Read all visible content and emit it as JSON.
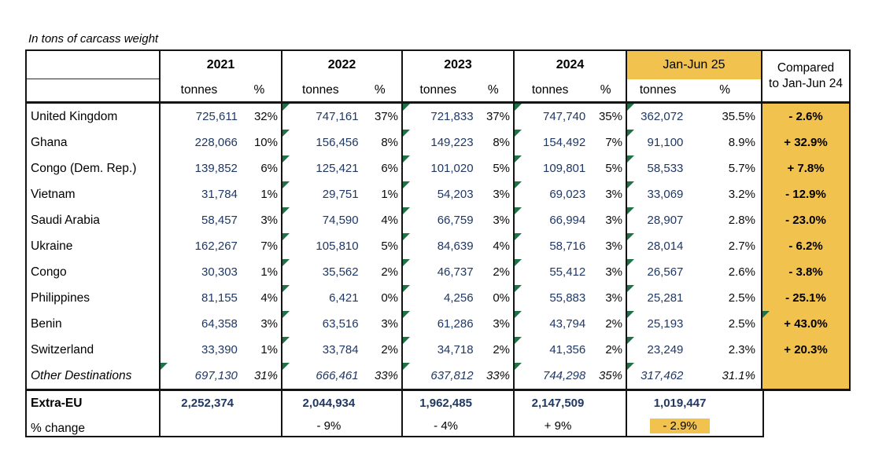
{
  "title": "In tons of carcass weight",
  "colors": {
    "highlight": "#F2C24E",
    "value_navy": "#1F3864",
    "flag_green": "#1E7245"
  },
  "table": {
    "col_headers": [
      {
        "label": "2021",
        "tonnes_label": "tonnes",
        "pct_label": "%",
        "highlight": false
      },
      {
        "label": "2022",
        "tonnes_label": "tonnes",
        "pct_label": "%",
        "highlight": false
      },
      {
        "label": "2023",
        "tonnes_label": "tonnes",
        "pct_label": "%",
        "highlight": false
      },
      {
        "label": "2024",
        "tonnes_label": "tonnes",
        "pct_label": "%",
        "highlight": false
      },
      {
        "label": "Jan-Jun 25",
        "tonnes_label": "tonnes",
        "pct_label": "%",
        "highlight": true
      }
    ],
    "compared_header": {
      "line1": "Compared",
      "line2": "to Jan-Jun 24"
    },
    "rows": [
      {
        "name": "United Kingdom",
        "italic": false,
        "cells": [
          {
            "tonnes": "725,611",
            "pct": "32%",
            "flag": false
          },
          {
            "tonnes": "747,161",
            "pct": "37%",
            "flag": true
          },
          {
            "tonnes": "721,833",
            "pct": "37%",
            "flag": true
          },
          {
            "tonnes": "747,740",
            "pct": "35%",
            "flag": true
          },
          {
            "tonnes": "362,072",
            "pct": "35.5%",
            "flag": true
          }
        ],
        "compared": "- 2.6%",
        "compared_flag": false
      },
      {
        "name": "Ghana",
        "italic": false,
        "cells": [
          {
            "tonnes": "228,066",
            "pct": "10%",
            "flag": false
          },
          {
            "tonnes": "156,456",
            "pct": "8%",
            "flag": true
          },
          {
            "tonnes": "149,223",
            "pct": "8%",
            "flag": true
          },
          {
            "tonnes": "154,492",
            "pct": "7%",
            "flag": true
          },
          {
            "tonnes": "91,100",
            "pct": "8.9%",
            "flag": true
          }
        ],
        "compared": "+ 32.9%",
        "compared_flag": false
      },
      {
        "name": "Congo (Dem. Rep.)",
        "italic": false,
        "cells": [
          {
            "tonnes": "139,852",
            "pct": "6%",
            "flag": false
          },
          {
            "tonnes": "125,421",
            "pct": "6%",
            "flag": true
          },
          {
            "tonnes": "101,020",
            "pct": "5%",
            "flag": true
          },
          {
            "tonnes": "109,801",
            "pct": "5%",
            "flag": true
          },
          {
            "tonnes": "58,533",
            "pct": "5.7%",
            "flag": true
          }
        ],
        "compared": "+ 7.8%",
        "compared_flag": false
      },
      {
        "name": "Vietnam",
        "italic": false,
        "cells": [
          {
            "tonnes": "31,784",
            "pct": "1%",
            "flag": false
          },
          {
            "tonnes": "29,751",
            "pct": "1%",
            "flag": true
          },
          {
            "tonnes": "54,203",
            "pct": "3%",
            "flag": true
          },
          {
            "tonnes": "69,023",
            "pct": "3%",
            "flag": true
          },
          {
            "tonnes": "33,069",
            "pct": "3.2%",
            "flag": true
          }
        ],
        "compared": "- 12.9%",
        "compared_flag": false
      },
      {
        "name": "Saudi Arabia",
        "italic": false,
        "cells": [
          {
            "tonnes": "58,457",
            "pct": "3%",
            "flag": false
          },
          {
            "tonnes": "74,590",
            "pct": "4%",
            "flag": true
          },
          {
            "tonnes": "66,759",
            "pct": "3%",
            "flag": true
          },
          {
            "tonnes": "66,994",
            "pct": "3%",
            "flag": true
          },
          {
            "tonnes": "28,907",
            "pct": "2.8%",
            "flag": true
          }
        ],
        "compared": "- 23.0%",
        "compared_flag": false
      },
      {
        "name": "Ukraine",
        "italic": false,
        "cells": [
          {
            "tonnes": "162,267",
            "pct": "7%",
            "flag": false
          },
          {
            "tonnes": "105,810",
            "pct": "5%",
            "flag": true
          },
          {
            "tonnes": "84,639",
            "pct": "4%",
            "flag": true
          },
          {
            "tonnes": "58,716",
            "pct": "3%",
            "flag": true
          },
          {
            "tonnes": "28,014",
            "pct": "2.7%",
            "flag": true
          }
        ],
        "compared": "- 6.2%",
        "compared_flag": false
      },
      {
        "name": "Congo",
        "italic": false,
        "cells": [
          {
            "tonnes": "30,303",
            "pct": "1%",
            "flag": false
          },
          {
            "tonnes": "35,562",
            "pct": "2%",
            "flag": true
          },
          {
            "tonnes": "46,737",
            "pct": "2%",
            "flag": true
          },
          {
            "tonnes": "55,412",
            "pct": "3%",
            "flag": true
          },
          {
            "tonnes": "26,567",
            "pct": "2.6%",
            "flag": true
          }
        ],
        "compared": "- 3.8%",
        "compared_flag": false
      },
      {
        "name": "Philippines",
        "italic": false,
        "cells": [
          {
            "tonnes": "81,155",
            "pct": "4%",
            "flag": false
          },
          {
            "tonnes": "6,421",
            "pct": "0%",
            "flag": true
          },
          {
            "tonnes": "4,256",
            "pct": "0%",
            "flag": true
          },
          {
            "tonnes": "55,883",
            "pct": "3%",
            "flag": true
          },
          {
            "tonnes": "25,281",
            "pct": "2.5%",
            "flag": true
          }
        ],
        "compared": "- 25.1%",
        "compared_flag": false
      },
      {
        "name": "Benin",
        "italic": false,
        "cells": [
          {
            "tonnes": "64,358",
            "pct": "3%",
            "flag": false
          },
          {
            "tonnes": "63,516",
            "pct": "3%",
            "flag": true
          },
          {
            "tonnes": "61,286",
            "pct": "3%",
            "flag": true
          },
          {
            "tonnes": "43,794",
            "pct": "2%",
            "flag": true
          },
          {
            "tonnes": "25,193",
            "pct": "2.5%",
            "flag": true
          }
        ],
        "compared": "+ 43.0%",
        "compared_flag": true
      },
      {
        "name": "Switzerland",
        "italic": false,
        "cells": [
          {
            "tonnes": "33,390",
            "pct": "1%",
            "flag": false
          },
          {
            "tonnes": "33,784",
            "pct": "2%",
            "flag": true
          },
          {
            "tonnes": "34,718",
            "pct": "2%",
            "flag": true
          },
          {
            "tonnes": "41,356",
            "pct": "2%",
            "flag": true
          },
          {
            "tonnes": "23,249",
            "pct": "2.3%",
            "flag": true
          }
        ],
        "compared": "+ 20.3%",
        "compared_flag": false
      },
      {
        "name": "Other Destinations",
        "italic": true,
        "cells": [
          {
            "tonnes": "697,130",
            "pct": "31%",
            "flag": true
          },
          {
            "tonnes": "666,461",
            "pct": "33%",
            "flag": true
          },
          {
            "tonnes": "637,812",
            "pct": "33%",
            "flag": true
          },
          {
            "tonnes": "744,298",
            "pct": "35%",
            "flag": true
          },
          {
            "tonnes": "317,462",
            "pct": "31.1%",
            "flag": true
          }
        ],
        "compared": "",
        "compared_flag": false
      }
    ],
    "footer": {
      "label1": "Extra-EU",
      "label2": "% change",
      "totals": [
        "2,252,374",
        "2,044,934",
        "1,962,485",
        "2,147,509",
        "1,019,447"
      ],
      "changes": [
        "",
        "- 9%",
        "- 4%",
        "+ 9%",
        "- 2.9%"
      ],
      "change_highlight_index": 4
    }
  }
}
